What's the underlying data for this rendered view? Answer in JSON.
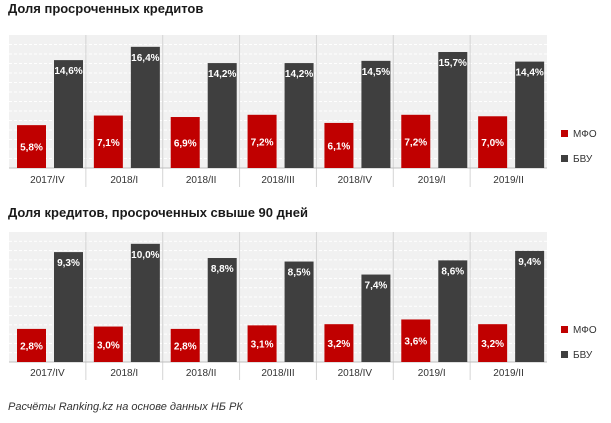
{
  "source_note": "Расчёты Ranking.kz  на основе данных НБ РК",
  "colors": {
    "mfo": "#c00000",
    "bvu": "#3f3f3f",
    "panel": "#f1f1f1",
    "grid": "#ffffff",
    "divider": "#d4d4d4"
  },
  "chart_data": [
    {
      "type": "bar",
      "title": "Доля просроченных кредитов",
      "categories": [
        "2017/IV",
        "2018/I",
        "2018/II",
        "2018/III",
        "2018/IV",
        "2019/I",
        "2019/II"
      ],
      "series": [
        {
          "name": "МФО",
          "values": [
            5.8,
            7.1,
            6.9,
            7.2,
            6.1,
            7.2,
            7.0
          ],
          "labels": [
            "5,8%",
            "7,1%",
            "6,9%",
            "7,2%",
            "6,1%",
            "7,2%",
            "7,0%"
          ]
        },
        {
          "name": "БВУ",
          "values": [
            14.6,
            16.4,
            14.2,
            14.2,
            14.5,
            15.7,
            14.4
          ],
          "labels": [
            "14,6%",
            "16,4%",
            "14,2%",
            "14,2%",
            "14,5%",
            "15,7%",
            "14,4%"
          ]
        }
      ],
      "ylim": [
        0,
        18
      ],
      "grid": true,
      "legend": "right"
    },
    {
      "type": "bar",
      "title": "Доля кредитов, просроченных свыше 90 дней",
      "categories": [
        "2017/IV",
        "2018/I",
        "2018/II",
        "2018/III",
        "2018/IV",
        "2019/I",
        "2019/II"
      ],
      "series": [
        {
          "name": "МФО",
          "values": [
            2.8,
            3.0,
            2.8,
            3.1,
            3.2,
            3.6,
            3.2
          ],
          "labels": [
            "2,8%",
            "3,0%",
            "2,8%",
            "3,1%",
            "3,2%",
            "3,6%",
            "3,2%"
          ]
        },
        {
          "name": "БВУ",
          "values": [
            9.3,
            10.0,
            8.8,
            8.5,
            7.4,
            8.6,
            9.4
          ],
          "labels": [
            "9,3%",
            "10,0%",
            "8,8%",
            "8,5%",
            "7,4%",
            "8,6%",
            "9,4%"
          ]
        }
      ],
      "ylim": [
        0,
        11
      ],
      "grid": true,
      "legend": "right"
    }
  ]
}
